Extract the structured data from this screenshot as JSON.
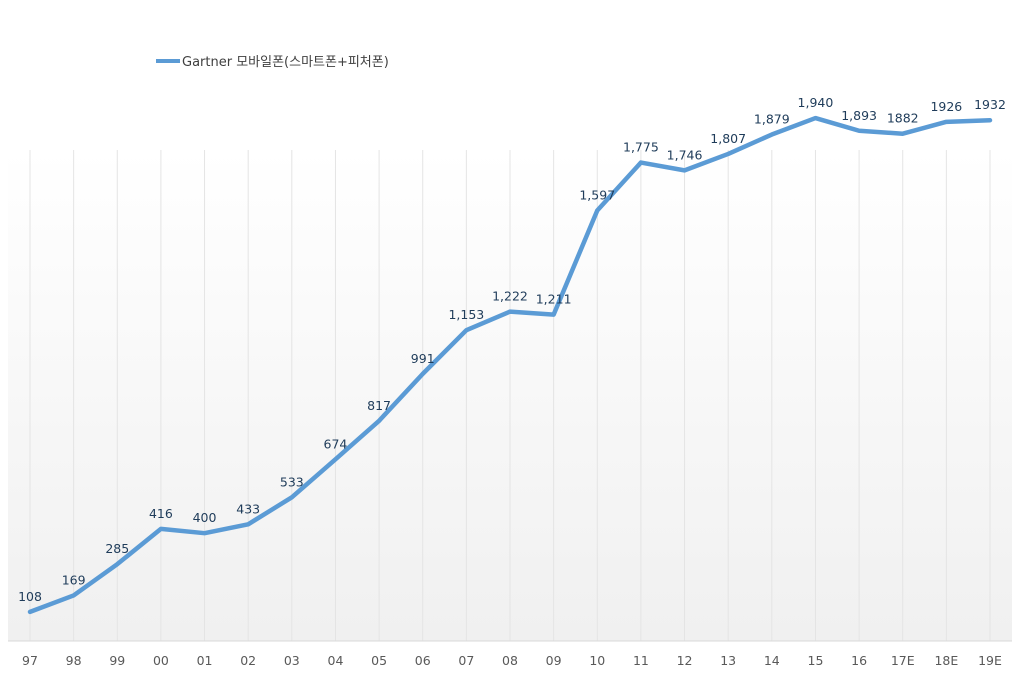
{
  "chart_data": {
    "type": "line",
    "title": "",
    "xlabel": "",
    "ylabel": "",
    "categories": [
      "97",
      "98",
      "99",
      "00",
      "01",
      "02",
      "03",
      "04",
      "05",
      "06",
      "07",
      "08",
      "09",
      "10",
      "11",
      "12",
      "13",
      "14",
      "15",
      "16",
      "17E",
      "18E",
      "19E"
    ],
    "series": [
      {
        "name": "Gartner 모바일폰(스마트폰+피처폰)",
        "values": [
          108,
          169,
          285,
          416,
          400,
          433,
          533,
          674,
          817,
          991,
          1153,
          1222,
          1211,
          1597,
          1775,
          1746,
          1807,
          1879,
          1940,
          1893,
          1882,
          1926,
          1932
        ],
        "data_labels": [
          "108",
          "169",
          "285",
          "416",
          "400",
          "433",
          "533",
          "674",
          "817",
          "991",
          "1,153",
          "1,222",
          "1,211",
          "1,597",
          "1,775",
          "1,746",
          "1,807",
          "1,879",
          "1,940",
          "1,893",
          "1882",
          "1926",
          "1932"
        ],
        "color": "#5b9bd5"
      }
    ],
    "ylim": [
      0,
      2200
    ],
    "grid": "vertical",
    "legend": "top-left",
    "y_axis_visible": false
  }
}
